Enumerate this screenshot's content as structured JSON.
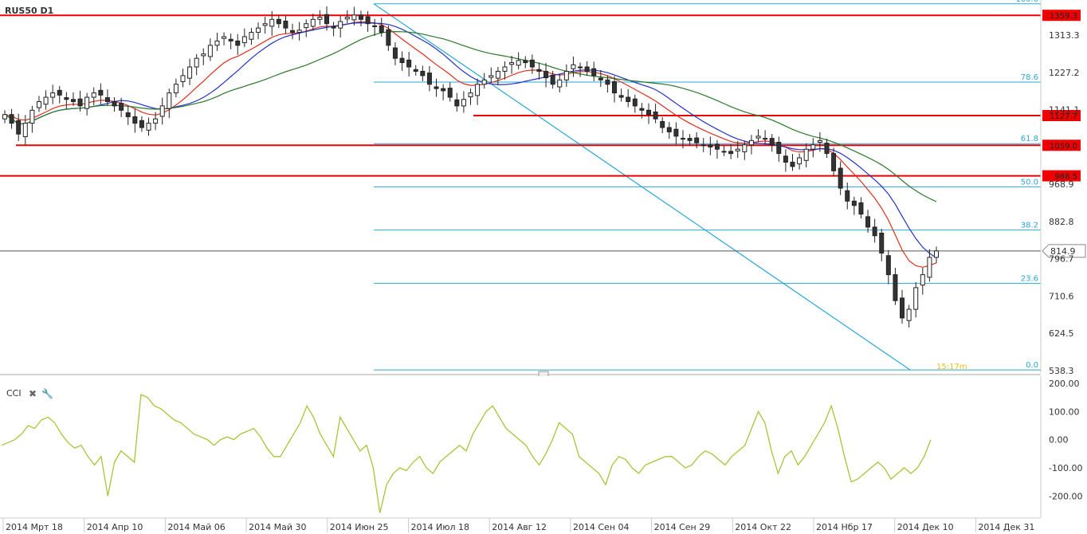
{
  "chart_data": {
    "type": "candlestick",
    "title": "RUS50 D1",
    "price_axis": {
      "ylim": [
        538.3,
        1380
      ],
      "ticks": [
        "1313.3",
        "1227.2",
        "1141.1",
        "968.9",
        "882.8",
        "796.7",
        "710.6",
        "624.5",
        "538.3"
      ]
    },
    "current_price": "814.9",
    "resistance_levels": [
      {
        "label": "1359.3",
        "value": 1359.3
      },
      {
        "label": "1127.7",
        "value": 1127.7
      },
      {
        "label": "1059.0",
        "value": 1059.0
      },
      {
        "label": "988.5",
        "value": 988.5
      }
    ],
    "fibonacci": {
      "high": 1386.0,
      "low": 540.0,
      "levels": [
        {
          "label": "100.0",
          "ratio": 1.0
        },
        {
          "label": "78.6",
          "ratio": 0.786
        },
        {
          "label": "61.8",
          "ratio": 0.618
        },
        {
          "label": "50.0",
          "ratio": 0.5
        },
        {
          "label": "38.2",
          "ratio": 0.382
        },
        {
          "label": "23.6",
          "ratio": 0.236
        },
        {
          "label": "0.0",
          "ratio": 0.0
        }
      ]
    },
    "timer_label": "15:17m",
    "x_labels": [
      "2014 Мрт 18",
      "2014 Апр 10",
      "2014 Май 06",
      "2014 Май 30",
      "2014 Июн 25",
      "2014 Июл 18",
      "2014 Авг 12",
      "2014 Сен 04",
      "2014 Сен 29",
      "2014 Окт 22",
      "2014 Нбр 17",
      "2014 Дек 10",
      "2014 Дек 31"
    ],
    "close": [
      1130,
      1110,
      1085,
      1110,
      1140,
      1160,
      1170,
      1180,
      1175,
      1165,
      1160,
      1150,
      1170,
      1180,
      1175,
      1160,
      1150,
      1140,
      1125,
      1110,
      1100,
      1110,
      1120,
      1150,
      1180,
      1200,
      1220,
      1240,
      1260,
      1270,
      1290,
      1300,
      1310,
      1300,
      1290,
      1310,
      1320,
      1330,
      1340,
      1350,
      1340,
      1330,
      1320,
      1325,
      1340,
      1350,
      1355,
      1340,
      1330,
      1345,
      1355,
      1360,
      1350,
      1340,
      1335,
      1320,
      1290,
      1260,
      1250,
      1240,
      1230,
      1220,
      1200,
      1190,
      1185,
      1170,
      1150,
      1165,
      1180,
      1200,
      1210,
      1220,
      1230,
      1240,
      1250,
      1255,
      1250,
      1240,
      1230,
      1215,
      1200,
      1210,
      1230,
      1245,
      1240,
      1230,
      1220,
      1210,
      1200,
      1180,
      1170,
      1160,
      1150,
      1140,
      1130,
      1120,
      1100,
      1090,
      1080,
      1075,
      1070,
      1065,
      1060,
      1055,
      1050,
      1045,
      1040,
      1050,
      1060,
      1070,
      1080,
      1075,
      1060,
      1040,
      1020,
      1010,
      1030,
      1050,
      1060,
      1070,
      1040,
      1000,
      960,
      930,
      920,
      900,
      870,
      850,
      810,
      760,
      700,
      660,
      680,
      730,
      760,
      800,
      814.9
    ],
    "cci": {
      "name": "CCI",
      "ylim": [
        -270,
        200
      ],
      "ticks": [
        "200.00",
        "100.00",
        "0.00",
        "-100.00",
        "-200.00"
      ],
      "values": [
        -20,
        -10,
        0,
        20,
        50,
        40,
        70,
        80,
        60,
        20,
        -10,
        -30,
        -20,
        -60,
        -90,
        -60,
        -200,
        -80,
        -40,
        -60,
        -80,
        160,
        150,
        120,
        110,
        90,
        70,
        60,
        40,
        20,
        10,
        0,
        -20,
        0,
        10,
        0,
        20,
        30,
        40,
        10,
        -30,
        -60,
        -60,
        -20,
        20,
        60,
        120,
        80,
        20,
        -20,
        -60,
        80,
        40,
        0,
        -40,
        -20,
        -100,
        -260,
        -160,
        -120,
        -100,
        -110,
        -80,
        -60,
        -100,
        -120,
        -80,
        -60,
        -40,
        -20,
        -40,
        20,
        60,
        100,
        120,
        80,
        40,
        20,
        0,
        -20,
        -60,
        -90,
        -50,
        0,
        60,
        40,
        20,
        -60,
        -80,
        -100,
        -120,
        -160,
        -90,
        -60,
        -70,
        -100,
        -120,
        -90,
        -80,
        -70,
        -60,
        -60,
        -80,
        -100,
        -90,
        -60,
        -40,
        -50,
        -70,
        -90,
        -60,
        -40,
        -20,
        40,
        100,
        60,
        -40,
        -120,
        -60,
        -40,
        -90,
        -60,
        -20,
        20,
        60,
        120,
        40,
        -60,
        -150,
        -140,
        -120,
        -100,
        -80,
        -100,
        -140,
        -120,
        -100,
        -120,
        -100,
        -60,
        0
      ]
    }
  }
}
